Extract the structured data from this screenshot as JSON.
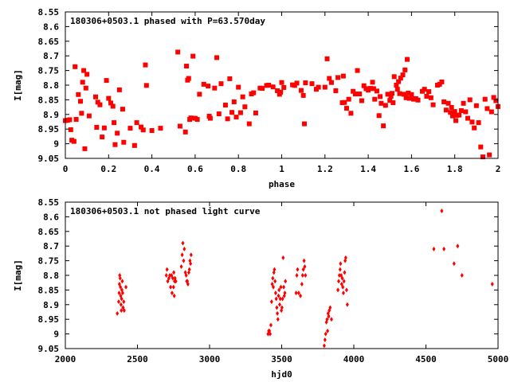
{
  "chart_data": [
    {
      "type": "scatter",
      "title": "180306+0503.1 phased with P=63.570day",
      "xlabel": "phase",
      "ylabel": "I[mag]",
      "xlim": [
        0,
        2
      ],
      "ylim": [
        8.55,
        9.05
      ],
      "y_inverted": true,
      "grid": false,
      "x_ticks": [
        "0",
        "0.2",
        "0.4",
        "0.6",
        "0.8",
        "1",
        "1.2",
        "1.4",
        "1.6",
        "1.8",
        "2"
      ],
      "y_ticks": [
        "8.55",
        "8.6",
        "8.65",
        "8.7",
        "8.75",
        "8.8",
        "8.85",
        "8.9",
        "8.95",
        "9",
        "9.05"
      ],
      "marker": "square",
      "color": "#ff0000",
      "points": [
        [
          0.0,
          8.921
        ],
        [
          0.01,
          8.92
        ],
        [
          0.02,
          8.918
        ],
        [
          0.025,
          8.952
        ],
        [
          0.03,
          8.988
        ],
        [
          0.04,
          8.992
        ],
        [
          0.045,
          8.737
        ],
        [
          0.05,
          8.917
        ],
        [
          0.06,
          8.832
        ],
        [
          0.07,
          8.855
        ],
        [
          0.075,
          8.896
        ],
        [
          0.08,
          8.79
        ],
        [
          0.085,
          8.75
        ],
        [
          0.09,
          9.017
        ],
        [
          0.095,
          8.81
        ],
        [
          0.1,
          8.763
        ],
        [
          0.11,
          8.905
        ],
        [
          0.14,
          8.84
        ],
        [
          0.145,
          8.944
        ],
        [
          0.15,
          8.858
        ],
        [
          0.16,
          8.867
        ],
        [
          0.17,
          8.977
        ],
        [
          0.18,
          8.946
        ],
        [
          0.19,
          8.784
        ],
        [
          0.2,
          8.845
        ],
        [
          0.21,
          8.861
        ],
        [
          0.22,
          8.872
        ],
        [
          0.225,
          8.928
        ],
        [
          0.23,
          9.003
        ],
        [
          0.24,
          8.964
        ],
        [
          0.25,
          8.816
        ],
        [
          0.265,
          8.882
        ],
        [
          0.27,
          8.995
        ],
        [
          0.3,
          8.947
        ],
        [
          0.32,
          9.006
        ],
        [
          0.33,
          8.928
        ],
        [
          0.35,
          8.943
        ],
        [
          0.36,
          8.953
        ],
        [
          0.37,
          8.731
        ],
        [
          0.375,
          8.801
        ],
        [
          0.4,
          8.955
        ],
        [
          0.44,
          8.947
        ],
        [
          0.52,
          8.687
        ],
        [
          0.53,
          8.94
        ],
        [
          0.555,
          8.96
        ],
        [
          0.56,
          8.735
        ],
        [
          0.565,
          8.783
        ],
        [
          0.57,
          8.777
        ],
        [
          0.575,
          8.917
        ],
        [
          0.58,
          8.912
        ],
        [
          0.59,
          8.701
        ],
        [
          0.6,
          8.913
        ],
        [
          0.61,
          8.917
        ],
        [
          0.62,
          8.831
        ],
        [
          0.64,
          8.797
        ],
        [
          0.66,
          8.803
        ],
        [
          0.665,
          8.906
        ],
        [
          0.67,
          8.913
        ],
        [
          0.69,
          8.81
        ],
        [
          0.7,
          8.706
        ],
        [
          0.71,
          8.898
        ],
        [
          0.72,
          8.795
        ],
        [
          0.74,
          8.868
        ],
        [
          0.75,
          8.915
        ],
        [
          0.76,
          8.778
        ],
        [
          0.77,
          8.893
        ],
        [
          0.78,
          8.857
        ],
        [
          0.79,
          8.909
        ],
        [
          0.8,
          8.807
        ],
        [
          0.81,
          8.894
        ],
        [
          0.82,
          8.84
        ],
        [
          0.83,
          8.874
        ],
        [
          0.85,
          8.932
        ],
        [
          0.86,
          8.83
        ],
        [
          0.87,
          8.826
        ],
        [
          0.88,
          8.895
        ],
        [
          0.9,
          8.81
        ],
        [
          0.91,
          8.811
        ],
        [
          0.93,
          8.801
        ],
        [
          0.94,
          8.8
        ],
        [
          0.96,
          8.806
        ],
        [
          0.98,
          8.819
        ],
        [
          0.99,
          8.831
        ],
        [
          0.995,
          8.824
        ],
        [
          1.0,
          8.791
        ],
        [
          1.01,
          8.808
        ],
        [
          1.05,
          8.799
        ],
        [
          1.06,
          8.801
        ],
        [
          1.07,
          8.793
        ],
        [
          1.09,
          8.818
        ],
        [
          1.1,
          8.835
        ],
        [
          1.105,
          8.932
        ],
        [
          1.11,
          8.792
        ],
        [
          1.14,
          8.795
        ],
        [
          1.16,
          8.814
        ],
        [
          1.17,
          8.807
        ],
        [
          1.2,
          8.807
        ],
        [
          1.21,
          8.71
        ],
        [
          1.22,
          8.777
        ],
        [
          1.23,
          8.791
        ],
        [
          1.25,
          8.819
        ],
        [
          1.26,
          8.774
        ],
        [
          1.28,
          8.86
        ],
        [
          1.285,
          8.769
        ],
        [
          1.29,
          8.859
        ],
        [
          1.3,
          8.879
        ],
        [
          1.31,
          8.848
        ],
        [
          1.32,
          8.896
        ],
        [
          1.33,
          8.821
        ],
        [
          1.34,
          8.83
        ],
        [
          1.35,
          8.75
        ],
        [
          1.36,
          8.83
        ],
        [
          1.37,
          8.853
        ],
        [
          1.38,
          8.802
        ],
        [
          1.39,
          8.812
        ],
        [
          1.4,
          8.817
        ],
        [
          1.41,
          8.811
        ],
        [
          1.42,
          8.79
        ],
        [
          1.425,
          8.812
        ],
        [
          1.43,
          8.848
        ],
        [
          1.44,
          8.82
        ],
        [
          1.45,
          8.904
        ],
        [
          1.455,
          8.839
        ],
        [
          1.46,
          8.862
        ],
        [
          1.47,
          8.939
        ],
        [
          1.48,
          8.869
        ],
        [
          1.49,
          8.831
        ],
        [
          1.5,
          8.852
        ],
        [
          1.505,
          8.838
        ],
        [
          1.51,
          8.828
        ],
        [
          1.515,
          8.86
        ],
        [
          1.52,
          8.771
        ],
        [
          1.53,
          8.8
        ],
        [
          1.535,
          8.814
        ],
        [
          1.54,
          8.788
        ],
        [
          1.545,
          8.829
        ],
        [
          1.55,
          8.776
        ],
        [
          1.56,
          8.765
        ],
        [
          1.565,
          8.831
        ],
        [
          1.57,
          8.748
        ],
        [
          1.575,
          8.843
        ],
        [
          1.58,
          8.712
        ],
        [
          1.585,
          8.827
        ],
        [
          1.59,
          8.845
        ],
        [
          1.6,
          8.832
        ],
        [
          1.61,
          8.848
        ],
        [
          1.62,
          8.846
        ],
        [
          1.63,
          8.851
        ],
        [
          1.65,
          8.821
        ],
        [
          1.66,
          8.814
        ],
        [
          1.67,
          8.838
        ],
        [
          1.68,
          8.822
        ],
        [
          1.69,
          8.843
        ],
        [
          1.7,
          8.867
        ],
        [
          1.72,
          8.8
        ],
        [
          1.73,
          8.797
        ],
        [
          1.74,
          8.789
        ],
        [
          1.75,
          8.857
        ],
        [
          1.76,
          8.885
        ],
        [
          1.77,
          8.862
        ],
        [
          1.78,
          8.893
        ],
        [
          1.785,
          8.876
        ],
        [
          1.79,
          8.905
        ],
        [
          1.8,
          8.89
        ],
        [
          1.805,
          8.921
        ],
        [
          1.81,
          8.903
        ],
        [
          1.82,
          8.902
        ],
        [
          1.83,
          8.887
        ],
        [
          1.84,
          8.862
        ],
        [
          1.85,
          8.891
        ],
        [
          1.86,
          8.913
        ],
        [
          1.87,
          8.85
        ],
        [
          1.88,
          8.926
        ],
        [
          1.89,
          8.946
        ],
        [
          1.9,
          8.87
        ],
        [
          1.91,
          8.928
        ],
        [
          1.92,
          9.011
        ],
        [
          1.93,
          9.045
        ],
        [
          1.94,
          8.848
        ],
        [
          1.95,
          8.88
        ],
        [
          1.96,
          9.038
        ],
        [
          1.97,
          8.891
        ],
        [
          1.98,
          8.842
        ],
        [
          1.99,
          8.853
        ],
        [
          2.0,
          8.873
        ]
      ]
    },
    {
      "type": "scatter",
      "title": "180306+0503.1 not phased light curve",
      "xlabel": "hjd0",
      "ylabel": "I[mag]",
      "xlim": [
        2000,
        5000
      ],
      "ylim": [
        8.55,
        9.05
      ],
      "y_inverted": true,
      "grid": false,
      "x_ticks": [
        "2000",
        "2500",
        "3000",
        "3500",
        "4000",
        "4500",
        "5000"
      ],
      "y_ticks": [
        "8.55",
        "8.6",
        "8.65",
        "8.7",
        "8.75",
        "8.8",
        "8.85",
        "8.9",
        "8.95",
        "9",
        "9.05"
      ],
      "marker": "diamond",
      "color": "#ff0000",
      "points": [
        [
          2360,
          8.93
        ],
        [
          2370,
          8.89
        ],
        [
          2373,
          8.86
        ],
        [
          2375,
          8.83
        ],
        [
          2377,
          8.8
        ],
        [
          2380,
          8.81
        ],
        [
          2382,
          8.84
        ],
        [
          2384,
          8.87
        ],
        [
          2386,
          8.9
        ],
        [
          2388,
          8.92
        ],
        [
          2390,
          8.88
        ],
        [
          2392,
          8.85
        ],
        [
          2395,
          8.82
        ],
        [
          2397,
          8.86
        ],
        [
          2400,
          8.91
        ],
        [
          2405,
          8.89
        ],
        [
          2408,
          8.92
        ],
        [
          2420,
          8.84
        ],
        [
          2700,
          8.8
        ],
        [
          2705,
          8.78
        ],
        [
          2710,
          8.82
        ],
        [
          2718,
          8.81
        ],
        [
          2724,
          8.8
        ],
        [
          2730,
          8.84
        ],
        [
          2736,
          8.8
        ],
        [
          2740,
          8.86
        ],
        [
          2745,
          8.81
        ],
        [
          2750,
          8.84
        ],
        [
          2752,
          8.79
        ],
        [
          2755,
          8.87
        ],
        [
          2757,
          8.82
        ],
        [
          2760,
          8.81
        ],
        [
          2766,
          8.82
        ],
        [
          2804,
          8.77
        ],
        [
          2810,
          8.73
        ],
        [
          2815,
          8.69
        ],
        [
          2820,
          8.75
        ],
        [
          2825,
          8.71
        ],
        [
          2832,
          8.79
        ],
        [
          2838,
          8.8
        ],
        [
          2842,
          8.82
        ],
        [
          2846,
          8.82
        ],
        [
          2850,
          8.83
        ],
        [
          2856,
          8.79
        ],
        [
          2860,
          8.78
        ],
        [
          2864,
          8.75
        ],
        [
          2868,
          8.76
        ],
        [
          2872,
          8.73
        ],
        [
          3405,
          9.0
        ],
        [
          3410,
          8.99
        ],
        [
          3415,
          8.99
        ],
        [
          3420,
          9.0
        ],
        [
          3425,
          8.97
        ],
        [
          3430,
          8.89
        ],
        [
          3434,
          8.83
        ],
        [
          3438,
          8.81
        ],
        [
          3442,
          8.84
        ],
        [
          3446,
          8.79
        ],
        [
          3450,
          8.78
        ],
        [
          3454,
          8.82
        ],
        [
          3458,
          8.86
        ],
        [
          3462,
          8.88
        ],
        [
          3466,
          8.91
        ],
        [
          3470,
          8.93
        ],
        [
          3474,
          8.95
        ],
        [
          3478,
          8.87
        ],
        [
          3482,
          8.85
        ],
        [
          3486,
          8.9
        ],
        [
          3490,
          8.88
        ],
        [
          3494,
          8.84
        ],
        [
          3498,
          8.92
        ],
        [
          3502,
          8.91
        ],
        [
          3506,
          8.88
        ],
        [
          3510,
          8.74
        ],
        [
          3514,
          8.84
        ],
        [
          3518,
          8.87
        ],
        [
          3522,
          8.86
        ],
        [
          3526,
          8.82
        ],
        [
          3600,
          8.86
        ],
        [
          3605,
          8.8
        ],
        [
          3610,
          8.78
        ],
        [
          3618,
          8.86
        ],
        [
          3630,
          8.87
        ],
        [
          3640,
          8.83
        ],
        [
          3645,
          8.8
        ],
        [
          3650,
          8.78
        ],
        [
          3655,
          8.75
        ],
        [
          3660,
          8.77
        ],
        [
          3665,
          8.8
        ],
        [
          3795,
          9.04
        ],
        [
          3800,
          9.02
        ],
        [
          3805,
          9.0
        ],
        [
          3810,
          8.96
        ],
        [
          3815,
          8.95
        ],
        [
          3818,
          8.99
        ],
        [
          3822,
          8.93
        ],
        [
          3826,
          8.94
        ],
        [
          3830,
          8.92
        ],
        [
          3836,
          8.91
        ],
        [
          3845,
          8.95
        ],
        [
          3890,
          8.85
        ],
        [
          3895,
          8.82
        ],
        [
          3900,
          8.8
        ],
        [
          3905,
          8.78
        ],
        [
          3908,
          8.76
        ],
        [
          3912,
          8.8
        ],
        [
          3916,
          8.83
        ],
        [
          3920,
          8.81
        ],
        [
          3924,
          8.84
        ],
        [
          3928,
          8.86
        ],
        [
          3932,
          8.82
        ],
        [
          3936,
          8.79
        ],
        [
          3940,
          8.75
        ],
        [
          3944,
          8.74
        ],
        [
          3950,
          8.85
        ],
        [
          3955,
          8.9
        ],
        [
          4555,
          8.71
        ],
        [
          4610,
          8.58
        ],
        [
          4625,
          8.71
        ],
        [
          4695,
          8.76
        ],
        [
          4720,
          8.7
        ],
        [
          4750,
          8.8
        ],
        [
          4960,
          8.83
        ]
      ]
    }
  ]
}
